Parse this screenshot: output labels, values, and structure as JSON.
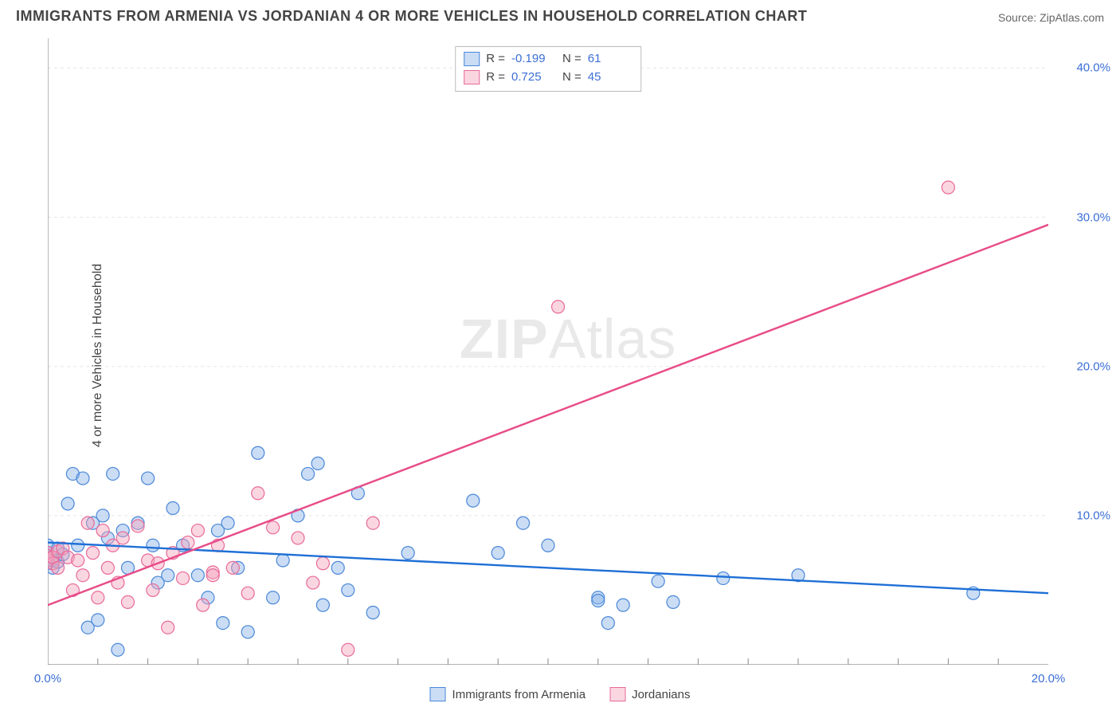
{
  "title": "IMMIGRANTS FROM ARMENIA VS JORDANIAN 4 OR MORE VEHICLES IN HOUSEHOLD CORRELATION CHART",
  "source_label": "Source:",
  "source_name": "ZipAtlas.com",
  "ylabel": "4 or more Vehicles in Household",
  "watermark": "ZIPAtlas",
  "chart": {
    "type": "scatter",
    "xlim": [
      0,
      20
    ],
    "ylim": [
      0,
      42
    ],
    "y_ticks": [
      10,
      20,
      30,
      40
    ],
    "y_tick_labels": [
      "10.0%",
      "20.0%",
      "30.0%",
      "40.0%"
    ],
    "x_ticks": [
      0,
      20
    ],
    "x_tick_labels": [
      "0.0%",
      "20.0%"
    ],
    "x_minor_ticks": [
      1,
      2,
      3,
      4,
      5,
      6,
      7,
      8,
      9,
      10,
      11,
      12,
      13,
      14,
      15,
      16,
      17,
      18,
      19
    ],
    "grid_color": "#e5e5e5",
    "axis_color": "#888888",
    "background": "#ffffff",
    "marker_radius": 8,
    "marker_stroke_width": 1.2,
    "line_width": 2.4
  },
  "series": [
    {
      "name": "Immigrants from Armenia",
      "fill": "rgba(138,180,232,0.45)",
      "stroke": "#4a87d8",
      "line_color": "#1f6fd6",
      "R": "-0.199",
      "N": "61",
      "regression": {
        "x1": 0,
        "y1": 8.2,
        "x2": 20,
        "y2": 4.8
      },
      "points": [
        [
          0.0,
          7.5
        ],
        [
          0.0,
          7.2
        ],
        [
          0.0,
          6.8
        ],
        [
          0.0,
          8.0
        ],
        [
          0.1,
          6.5
        ],
        [
          0.1,
          7.0
        ],
        [
          0.2,
          7.8
        ],
        [
          0.2,
          6.9
        ],
        [
          0.3,
          7.4
        ],
        [
          0.4,
          10.8
        ],
        [
          0.5,
          12.8
        ],
        [
          0.6,
          8.0
        ],
        [
          0.7,
          12.5
        ],
        [
          0.8,
          2.5
        ],
        [
          0.9,
          9.5
        ],
        [
          1.0,
          3.0
        ],
        [
          1.1,
          10.0
        ],
        [
          1.2,
          8.5
        ],
        [
          1.3,
          12.8
        ],
        [
          1.4,
          1.0
        ],
        [
          1.5,
          9.0
        ],
        [
          1.6,
          6.5
        ],
        [
          1.8,
          9.5
        ],
        [
          2.0,
          12.5
        ],
        [
          2.1,
          8.0
        ],
        [
          2.2,
          5.5
        ],
        [
          2.4,
          6.0
        ],
        [
          2.5,
          10.5
        ],
        [
          2.7,
          8.0
        ],
        [
          3.0,
          6.0
        ],
        [
          3.2,
          4.5
        ],
        [
          3.4,
          9.0
        ],
        [
          3.5,
          2.8
        ],
        [
          3.6,
          9.5
        ],
        [
          3.8,
          6.5
        ],
        [
          4.0,
          2.2
        ],
        [
          4.2,
          14.2
        ],
        [
          4.5,
          4.5
        ],
        [
          4.7,
          7.0
        ],
        [
          5.0,
          10.0
        ],
        [
          5.2,
          12.8
        ],
        [
          5.4,
          13.5
        ],
        [
          5.5,
          4.0
        ],
        [
          5.8,
          6.5
        ],
        [
          6.0,
          5.0
        ],
        [
          6.2,
          11.5
        ],
        [
          6.5,
          3.5
        ],
        [
          7.2,
          7.5
        ],
        [
          8.5,
          11.0
        ],
        [
          9.0,
          7.5
        ],
        [
          9.5,
          9.5
        ],
        [
          10.0,
          8.0
        ],
        [
          11.0,
          4.5
        ],
        [
          11.2,
          2.8
        ],
        [
          11.5,
          4.0
        ],
        [
          12.2,
          5.6
        ],
        [
          12.5,
          4.2
        ],
        [
          13.5,
          5.8
        ],
        [
          15.0,
          6.0
        ],
        [
          18.5,
          4.8
        ],
        [
          11.0,
          4.3
        ]
      ]
    },
    {
      "name": "Jordanians",
      "fill": "rgba(244,164,188,0.45)",
      "stroke": "#e86a9a",
      "line_color": "#e84c88",
      "R": "0.725",
      "N": "45",
      "regression": {
        "x1": 0,
        "y1": 4.0,
        "x2": 20,
        "y2": 29.5
      },
      "points": [
        [
          0.0,
          7.0
        ],
        [
          0.0,
          7.5
        ],
        [
          0.0,
          7.3
        ],
        [
          0.1,
          6.8
        ],
        [
          0.1,
          7.2
        ],
        [
          0.2,
          7.6
        ],
        [
          0.2,
          6.5
        ],
        [
          0.3,
          7.8
        ],
        [
          0.4,
          7.2
        ],
        [
          0.5,
          5.0
        ],
        [
          0.6,
          7.0
        ],
        [
          0.7,
          6.0
        ],
        [
          0.8,
          9.5
        ],
        [
          0.9,
          7.5
        ],
        [
          1.0,
          4.5
        ],
        [
          1.1,
          9.0
        ],
        [
          1.2,
          6.5
        ],
        [
          1.3,
          8.0
        ],
        [
          1.4,
          5.5
        ],
        [
          1.5,
          8.5
        ],
        [
          1.6,
          4.2
        ],
        [
          1.8,
          9.3
        ],
        [
          2.0,
          7.0
        ],
        [
          2.1,
          5.0
        ],
        [
          2.2,
          6.8
        ],
        [
          2.4,
          2.5
        ],
        [
          2.5,
          7.5
        ],
        [
          2.7,
          5.8
        ],
        [
          2.8,
          8.2
        ],
        [
          3.0,
          9.0
        ],
        [
          3.1,
          4.0
        ],
        [
          3.3,
          6.2
        ],
        [
          3.4,
          8.0
        ],
        [
          3.7,
          6.5
        ],
        [
          4.0,
          4.8
        ],
        [
          4.2,
          11.5
        ],
        [
          4.5,
          9.2
        ],
        [
          5.0,
          8.5
        ],
        [
          5.3,
          5.5
        ],
        [
          5.5,
          6.8
        ],
        [
          6.0,
          1.0
        ],
        [
          6.5,
          9.5
        ],
        [
          10.2,
          24.0
        ],
        [
          18.0,
          32.0
        ],
        [
          3.3,
          6.0
        ]
      ]
    }
  ],
  "stats_box": {
    "rows": [
      {
        "swatch_fill": "rgba(138,180,232,0.45)",
        "swatch_stroke": "#4a87d8",
        "R": "-0.199",
        "N": "61"
      },
      {
        "swatch_fill": "rgba(244,164,188,0.45)",
        "swatch_stroke": "#e86a9a",
        "R": "0.725",
        "N": "45"
      }
    ],
    "R_label": "R =",
    "N_label": "N ="
  },
  "legend": [
    {
      "swatch_fill": "rgba(138,180,232,0.45)",
      "swatch_stroke": "#4a87d8",
      "label": "Immigrants from Armenia"
    },
    {
      "swatch_fill": "rgba(244,164,188,0.45)",
      "swatch_stroke": "#e86a9a",
      "label": "Jordanians"
    }
  ]
}
